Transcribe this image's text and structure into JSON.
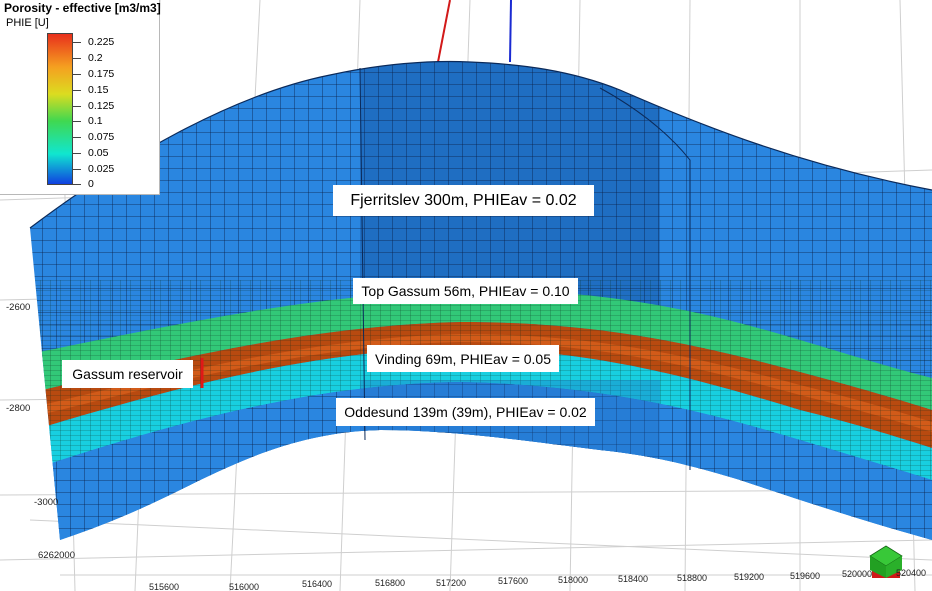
{
  "legend": {
    "title": "Porosity - effective [m3/m3]",
    "property": "PHIE [U]",
    "ticks": [
      "0.225",
      "0.2",
      "0.175",
      "0.15",
      "0.125",
      "0.1",
      "0.075",
      "0.05",
      "0.025",
      "0"
    ],
    "colors": {
      "top": "#e8301c",
      "upper": "#f5a020",
      "mid_upper": "#dcdc20",
      "mid": "#40d850",
      "lower": "#10e6d0",
      "bottom": "#1040e0"
    }
  },
  "annotations": {
    "fjerritslev": "Fjerritslev 300m, PHIEav = 0.02",
    "top_gassum": "Top Gassum 56m, PHIEav = 0.10",
    "vinding": "Vinding 69m, PHIEav = 0.05",
    "oddesund": "Oddesund 139m (39m), PHIEav = 0.02",
    "gassum_reservoir": "Gassum reservoir"
  },
  "axes": {
    "depth": [
      "-2600",
      "-2800",
      "-3000"
    ],
    "northing": "6262000",
    "easting": [
      "515600",
      "516000",
      "516400",
      "516800",
      "517200",
      "517600",
      "518000",
      "518400",
      "518800",
      "519200",
      "519600",
      "520000",
      "520400"
    ]
  },
  "model_colors": {
    "overburden": "#2a86e0",
    "overburden_shade": "#1e5fa8",
    "top_gassum": "#32c878",
    "reservoir": "#b84a10",
    "vinding": "#18cfe0",
    "oddesund": "#2a86e0"
  }
}
